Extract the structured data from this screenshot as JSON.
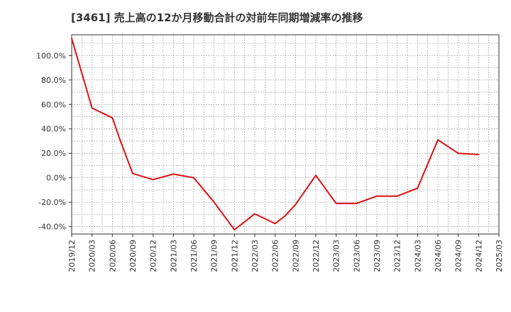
{
  "chart_data": {
    "type": "line",
    "title": "[3461]  売上高の12か月移動合計の対前年同期増減率の推移",
    "xlabel": "",
    "ylabel": "",
    "ylim": [
      -46,
      117
    ],
    "yticks": [
      -40,
      -20,
      0,
      20,
      40,
      60,
      80,
      100
    ],
    "ytick_labels": [
      "-40.0%",
      "-20.0%",
      "0.0%",
      "20.0%",
      "40.0%",
      "60.0%",
      "80.0%",
      "100.0%"
    ],
    "xticks": [
      "2019/12",
      "2020/03",
      "2020/06",
      "2020/09",
      "2020/12",
      "2021/03",
      "2021/06",
      "2021/09",
      "2021/12",
      "2022/03",
      "2022/06",
      "2022/09",
      "2022/12",
      "2023/03",
      "2023/06",
      "2023/09",
      "2023/12",
      "2024/03",
      "2024/06",
      "2024/09",
      "2024/12",
      "2025/03"
    ],
    "grid": true,
    "series": [
      {
        "name": "増減率",
        "color": "#dd1111",
        "x": [
          0,
          1,
          2,
          2.4,
          3,
          4,
          5,
          6,
          7,
          8,
          9,
          10,
          10.5,
          11,
          12,
          13,
          14,
          15,
          16,
          17,
          18,
          19,
          20
        ],
        "values": [
          114,
          57,
          49,
          30,
          3.5,
          -1.5,
          3,
          0,
          -20,
          -42.5,
          -29.5,
          -37.5,
          -31,
          -22,
          2,
          -21,
          -21,
          -15,
          -15,
          -8.5,
          31,
          20,
          19
        ]
      }
    ]
  }
}
